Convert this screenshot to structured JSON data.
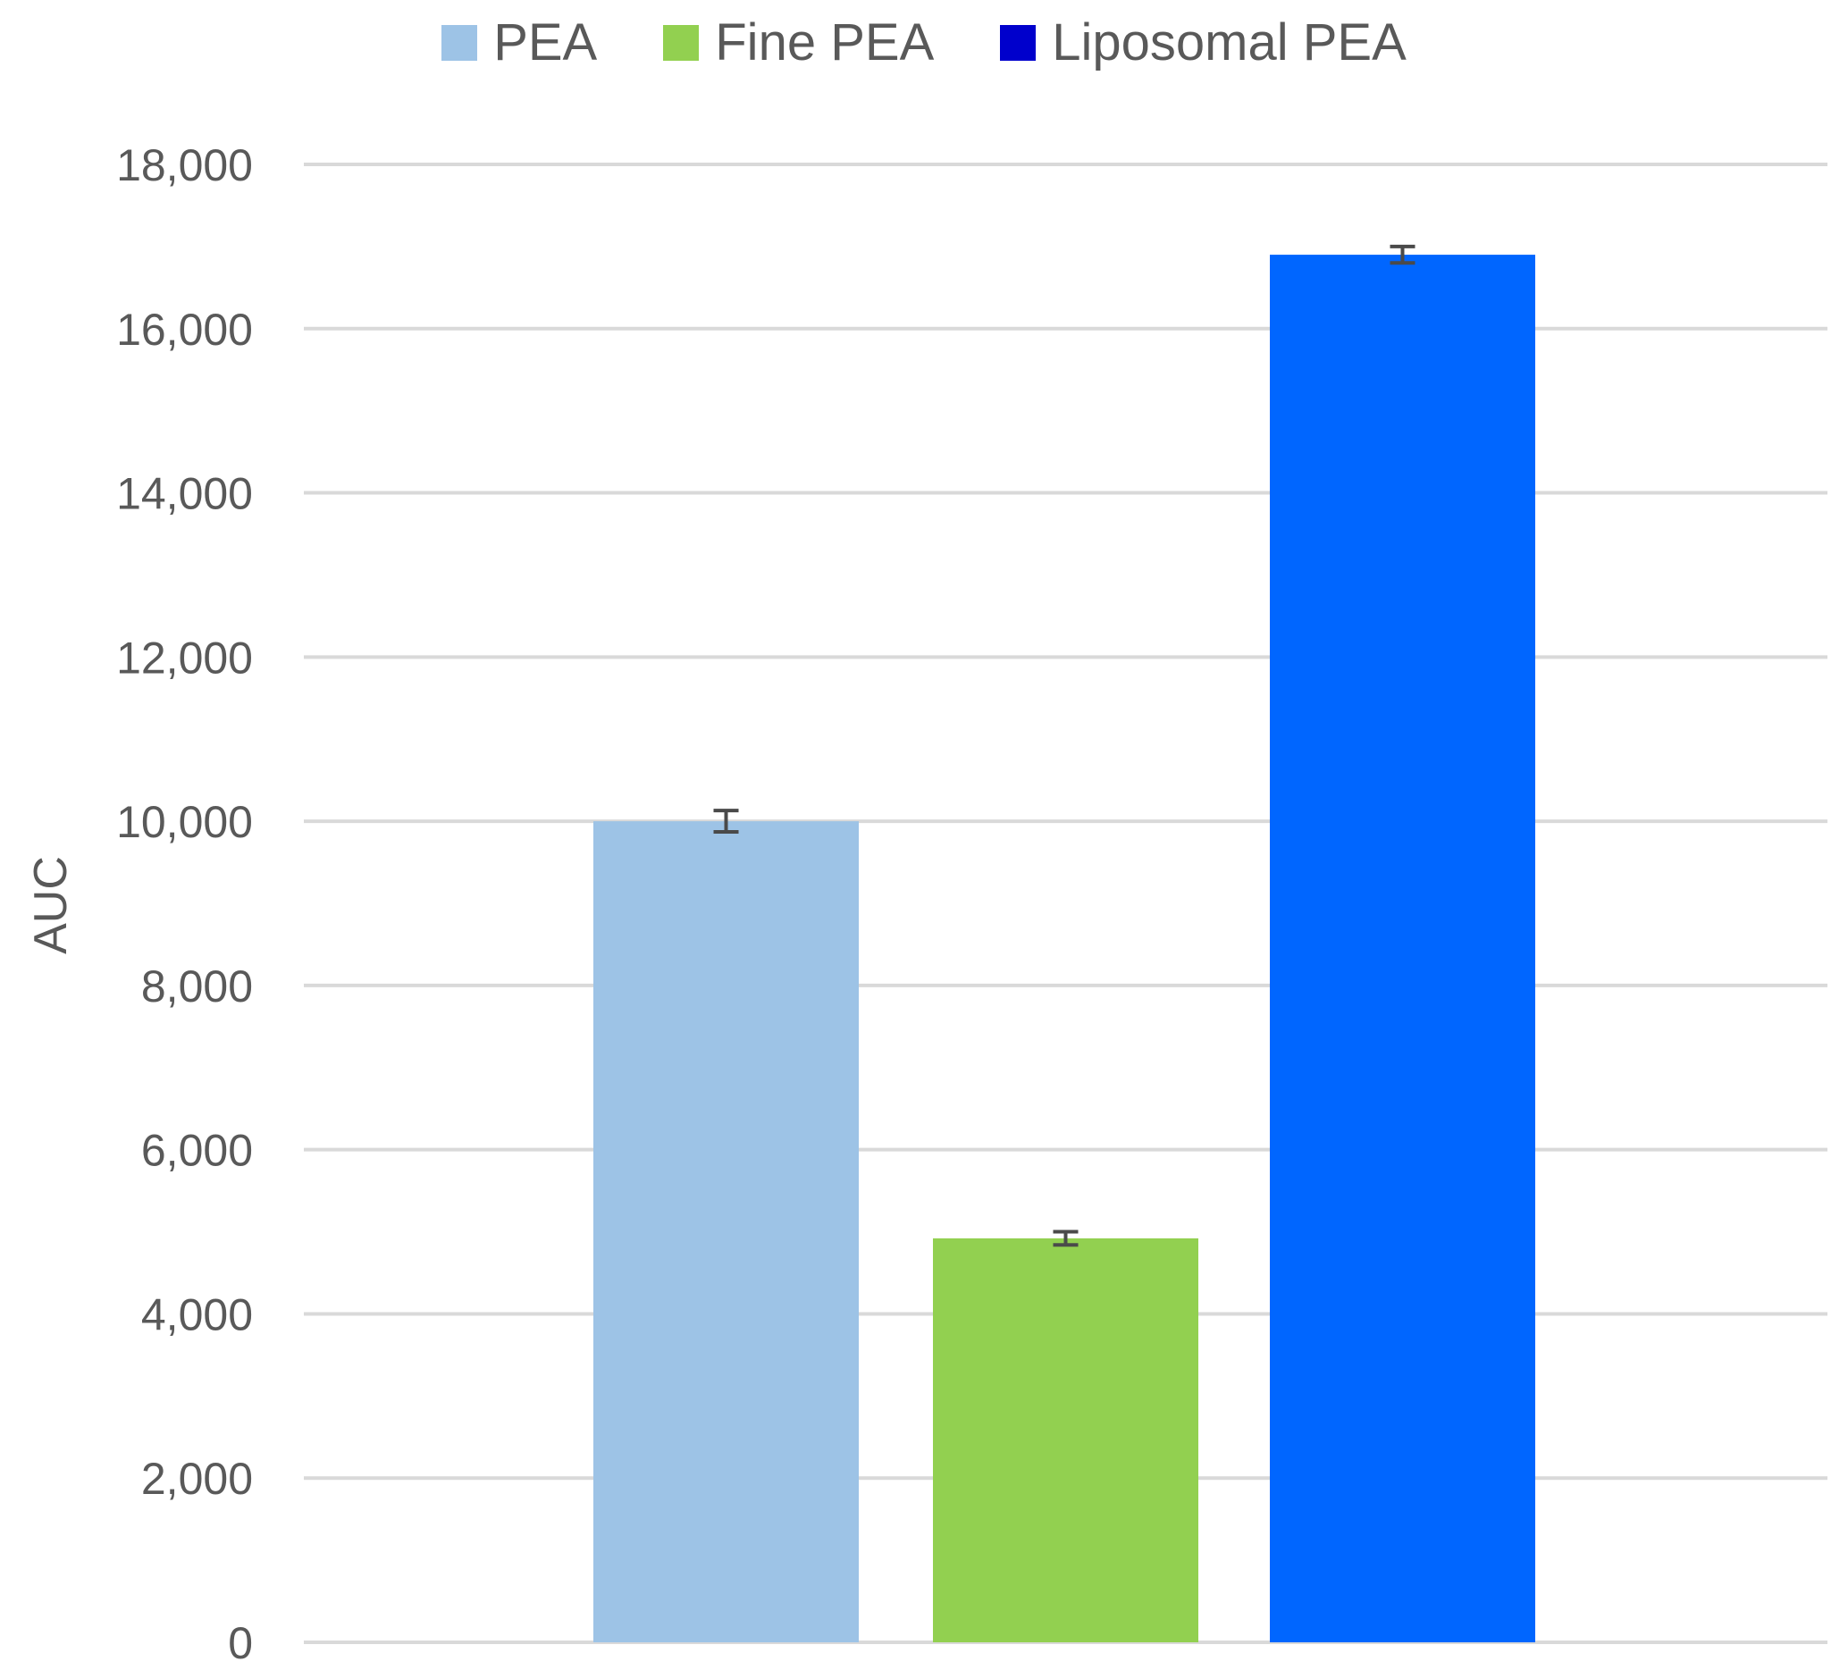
{
  "chart_data": {
    "type": "bar",
    "title": "",
    "xlabel": "",
    "ylabel": "AUC",
    "ylim": [
      0,
      18000
    ],
    "yticks": [
      0,
      2000,
      4000,
      6000,
      8000,
      10000,
      12000,
      14000,
      16000,
      18000
    ],
    "ytick_labels": [
      "0",
      "2,000",
      "4,000",
      "6,000",
      "8,000",
      "10,000",
      "12,000",
      "14,000",
      "16,000",
      "18,000"
    ],
    "grid": true,
    "legend_position": "top-center",
    "series": [
      {
        "name": "PEA",
        "value": 10000,
        "error": 130,
        "color": "#9DC3E6",
        "legend_color": "#9DC3E6"
      },
      {
        "name": "Fine PEA",
        "value": 4920,
        "error": 80,
        "color": "#92D050",
        "legend_color": "#92D050"
      },
      {
        "name": "Liposomal PEA",
        "value": 16900,
        "error": 100,
        "color": "#0066FF",
        "legend_color": "#0000CC"
      }
    ]
  }
}
